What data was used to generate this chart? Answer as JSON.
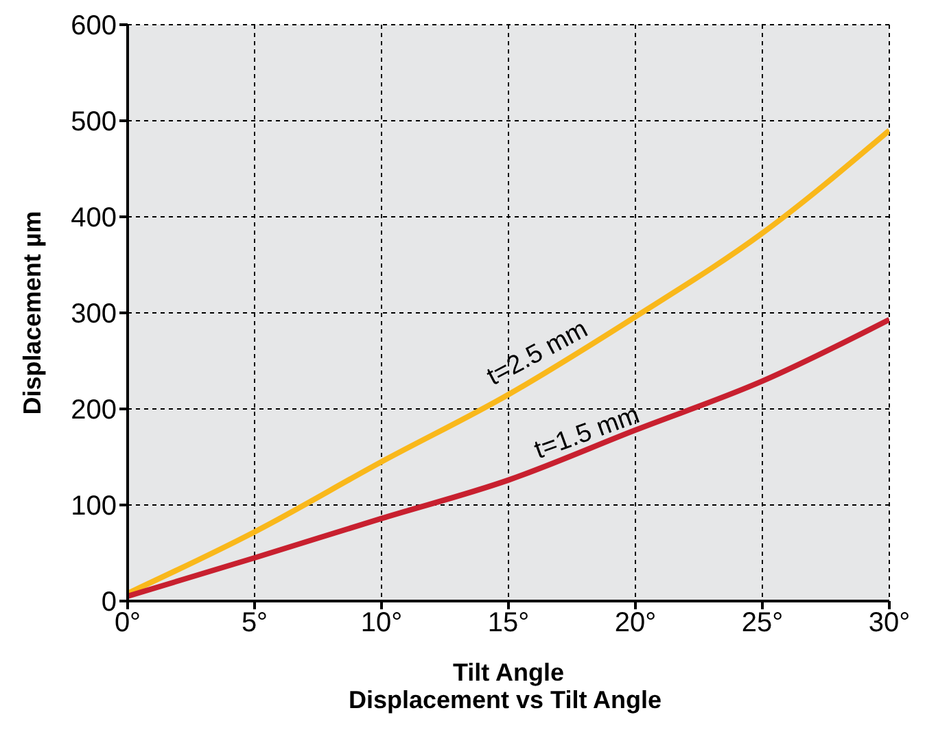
{
  "chart_data": {
    "type": "line",
    "title": "Displacement vs Tilt Angle",
    "xlabel": "Tilt Angle",
    "ylabel": "Displacement µm",
    "x": [
      0,
      5,
      10,
      15,
      20,
      25,
      30
    ],
    "series": [
      {
        "color": "#f9b81b",
        "values": [
          8,
          72,
          145,
          215,
          296,
          383,
          490
        ]
      },
      {
        "color": "#c8202f",
        "values": [
          5,
          45,
          86,
          126,
          178,
          229,
          293
        ]
      }
    ],
    "xlim": [
      0,
      30
    ],
    "xticks": [
      {
        "value": 0,
        "label": "0°"
      },
      {
        "value": 5,
        "label": "5°"
      },
      {
        "value": 10,
        "label": "10°"
      },
      {
        "value": 15,
        "label": "15°"
      },
      {
        "value": 20,
        "label": "20°"
      },
      {
        "value": 25,
        "label": "25°"
      },
      {
        "value": 30,
        "label": "30°"
      }
    ],
    "ylim": [
      0,
      600
    ],
    "yticks": [
      0,
      100,
      200,
      300,
      400,
      500,
      600
    ],
    "grid": true,
    "marker": "none",
    "line_style": "solid",
    "annotations": [
      "t=2.5 mm",
      "t=1.5 mm"
    ]
  }
}
